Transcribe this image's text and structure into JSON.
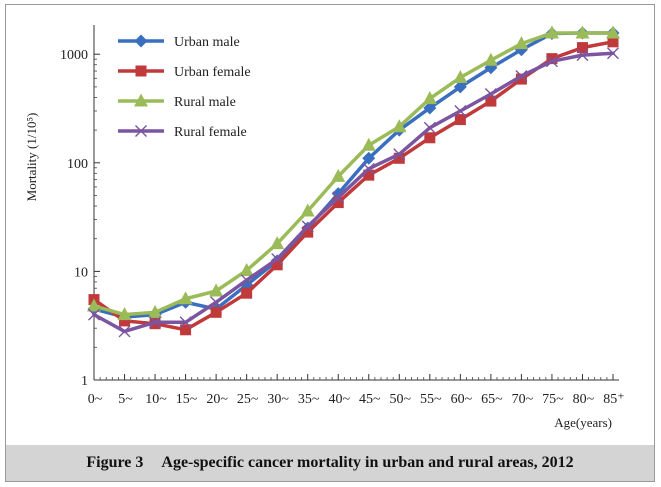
{
  "caption": {
    "figure_number": "Figure 3",
    "text": "Age-specific cancer mortality in urban and rural areas, 2012"
  },
  "chart_data": {
    "type": "line",
    "title": "",
    "xlabel": "Age(years)",
    "ylabel": "Mortality (1/10⁵)",
    "yscale": "log",
    "ylim": [
      1,
      1600
    ],
    "y_ticks": [
      {
        "value": 1,
        "label": "1"
      },
      {
        "value": 10,
        "label": "10"
      },
      {
        "value": 100,
        "label": "100"
      },
      {
        "value": 1000,
        "label": "1000"
      }
    ],
    "categories": [
      "0~",
      "5~",
      "10~",
      "15~",
      "20~",
      "25~",
      "30~",
      "35~",
      "40~",
      "45~",
      "50~",
      "55~",
      "60~",
      "65~",
      "70~",
      "75~",
      "80~",
      "85⁺"
    ],
    "legend_position": "top-left",
    "series": [
      {
        "name": "Urban male",
        "color": "#3a6fc0",
        "marker": "diamond",
        "values": [
          4.5,
          3.8,
          4.0,
          5.2,
          4.5,
          7.5,
          12.5,
          25,
          52,
          110,
          200,
          320,
          500,
          750,
          1100,
          1550,
          1600,
          1600
        ]
      },
      {
        "name": "Urban female",
        "color": "#c0393b",
        "marker": "square",
        "values": [
          5.5,
          3.5,
          3.3,
          2.9,
          4.2,
          6.3,
          11.5,
          23,
          43,
          77,
          110,
          170,
          250,
          370,
          590,
          910,
          1150,
          1300
        ]
      },
      {
        "name": "Rural male",
        "color": "#9bbb59",
        "marker": "triangle",
        "values": [
          4.8,
          4.0,
          4.2,
          5.6,
          6.6,
          10.2,
          18,
          36,
          75,
          145,
          215,
          390,
          610,
          880,
          1250,
          1600,
          1600,
          1600
        ]
      },
      {
        "name": "Rural female",
        "color": "#7b55a0",
        "marker": "x",
        "values": [
          4.0,
          2.8,
          3.4,
          3.4,
          5.2,
          8.3,
          13,
          26,
          48,
          88,
          120,
          210,
          300,
          430,
          630,
          860,
          980,
          1020
        ]
      }
    ]
  }
}
